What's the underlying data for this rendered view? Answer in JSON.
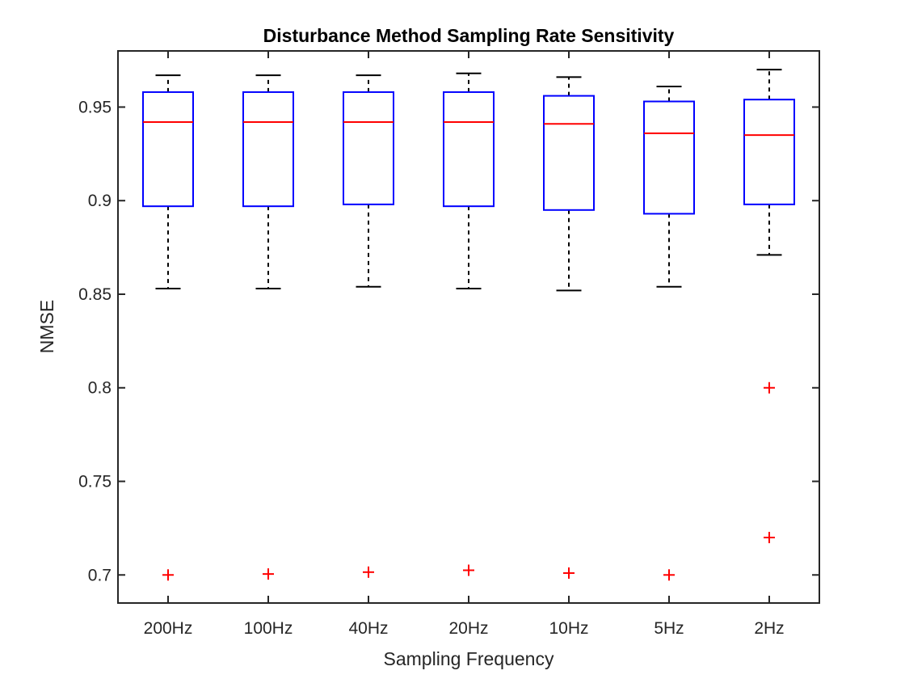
{
  "chart_data": {
    "type": "boxplot",
    "title": "Disturbance Method Sampling Rate Sensitivity",
    "xlabel": "Sampling Frequency",
    "ylabel": "NMSE",
    "ylim": [
      0.685,
      0.98
    ],
    "yticks": [
      0.7,
      0.75,
      0.8,
      0.85,
      0.9,
      0.95
    ],
    "ytick_labels": [
      "0.7",
      "0.75",
      "0.8",
      "0.85",
      "0.9",
      "0.95"
    ],
    "categories": [
      "200Hz",
      "100Hz",
      "40Hz",
      "20Hz",
      "10Hz",
      "5Hz",
      "2Hz"
    ],
    "boxes": [
      {
        "label": "200Hz",
        "whisker_low": 0.853,
        "q1": 0.897,
        "median": 0.942,
        "q3": 0.958,
        "whisker_high": 0.967,
        "outliers": [
          0.7
        ]
      },
      {
        "label": "100Hz",
        "whisker_low": 0.853,
        "q1": 0.897,
        "median": 0.942,
        "q3": 0.958,
        "whisker_high": 0.967,
        "outliers": [
          0.7005
        ]
      },
      {
        "label": "40Hz",
        "whisker_low": 0.854,
        "q1": 0.898,
        "median": 0.942,
        "q3": 0.958,
        "whisker_high": 0.967,
        "outliers": [
          0.7015
        ]
      },
      {
        "label": "20Hz",
        "whisker_low": 0.853,
        "q1": 0.897,
        "median": 0.942,
        "q3": 0.958,
        "whisker_high": 0.968,
        "outliers": [
          0.7025
        ]
      },
      {
        "label": "10Hz",
        "whisker_low": 0.852,
        "q1": 0.895,
        "median": 0.941,
        "q3": 0.956,
        "whisker_high": 0.966,
        "outliers": [
          0.701
        ]
      },
      {
        "label": "5Hz",
        "whisker_low": 0.854,
        "q1": 0.893,
        "median": 0.936,
        "q3": 0.953,
        "whisker_high": 0.961,
        "outliers": [
          0.7
        ]
      },
      {
        "label": "2Hz",
        "whisker_low": 0.871,
        "q1": 0.898,
        "median": 0.935,
        "q3": 0.954,
        "whisker_high": 0.97,
        "outliers": [
          0.8,
          0.72
        ]
      }
    ],
    "colors": {
      "box": "#0000ff",
      "median": "#ff0000",
      "whisker": "#000000",
      "outlier": "#ff0000",
      "axis": "#262626"
    }
  }
}
